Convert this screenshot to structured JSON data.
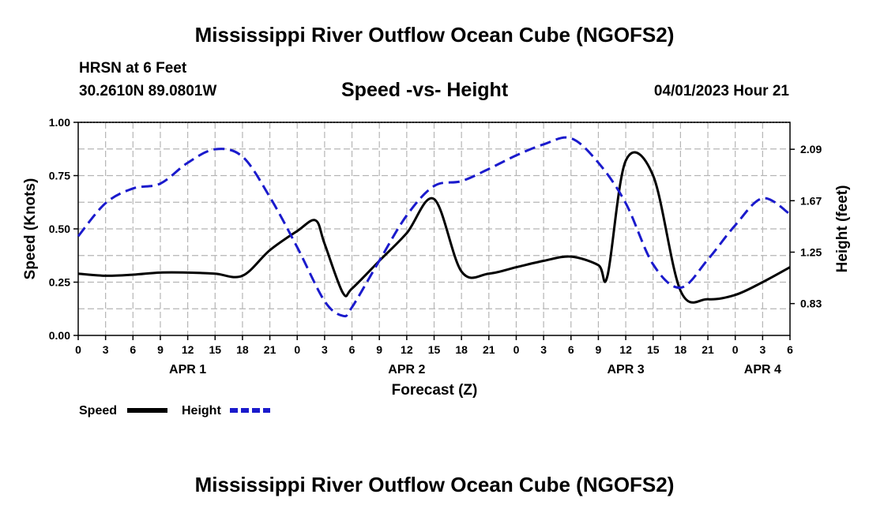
{
  "header": {
    "title": "Mississippi River Outflow Ocean Cube (NGOFS2)",
    "station": "HRSN at 6 Feet",
    "coords": "30.2610N  89.0801W",
    "datetime": "04/01/2023 Hour 21"
  },
  "footer": {
    "title": "Mississippi River Outflow Ocean Cube (NGOFS2)"
  },
  "chart_data": {
    "type": "line",
    "title": "Speed -vs- Height",
    "xlabel": "Forecast (Z)",
    "ylabel": "Speed (Knots)",
    "y2label": "Height (feet)",
    "xlim": [
      0,
      78
    ],
    "ylim": [
      0,
      1
    ],
    "y2lim": [
      0.57,
      2.31
    ],
    "x_tick_values": [
      0,
      3,
      6,
      9,
      12,
      15,
      18,
      21,
      24,
      27,
      30,
      33,
      36,
      39,
      42,
      45,
      48,
      51,
      54,
      57,
      60,
      63,
      66,
      69,
      72,
      75,
      78
    ],
    "x_tick_labels": [
      "0",
      "3",
      "6",
      "9",
      "12",
      "15",
      "18",
      "21",
      "0",
      "3",
      "6",
      "9",
      "12",
      "15",
      "18",
      "21",
      "0",
      "3",
      "6",
      "9",
      "12",
      "15",
      "18",
      "21",
      "0",
      "3",
      "6"
    ],
    "day_labels": [
      {
        "label": "APR 1",
        "x": 12
      },
      {
        "label": "APR 2",
        "x": 36
      },
      {
        "label": "APR 3",
        "x": 60
      },
      {
        "label": "APR 4",
        "x": 75
      }
    ],
    "y_ticks": [
      "0.00",
      "0.25",
      "0.50",
      "0.75",
      "1.00"
    ],
    "y_tick_values": [
      0,
      0.25,
      0.5,
      0.75,
      1.0
    ],
    "y2_ticks": [
      "0.83",
      "1.25",
      "1.67",
      "2.09"
    ],
    "y2_tick_values": [
      0.83,
      1.25,
      1.67,
      2.09
    ],
    "grid": true,
    "legend": [
      {
        "name": "Speed",
        "color": "#000000",
        "style": "solid"
      },
      {
        "name": "Height",
        "color": "#1a1acc",
        "style": "dashed"
      }
    ],
    "series": [
      {
        "name": "Speed",
        "axis": "left",
        "color": "#000000",
        "x": [
          0,
          3,
          6,
          9,
          12,
          15,
          18,
          21,
          24,
          26,
          27,
          29,
          30,
          33,
          36,
          39,
          42,
          45,
          48,
          51,
          54,
          57,
          58,
          60,
          63,
          66,
          69,
          72,
          75,
          78
        ],
        "y": [
          0.29,
          0.28,
          0.285,
          0.295,
          0.295,
          0.29,
          0.28,
          0.4,
          0.49,
          0.54,
          0.43,
          0.2,
          0.22,
          0.35,
          0.48,
          0.64,
          0.3,
          0.29,
          0.32,
          0.35,
          0.37,
          0.33,
          0.28,
          0.82,
          0.75,
          0.21,
          0.17,
          0.19,
          0.25,
          0.32
        ]
      },
      {
        "name": "Height",
        "axis": "right",
        "color": "#1a1acc",
        "x": [
          0,
          3,
          6,
          9,
          12,
          15,
          18,
          21,
          24,
          27,
          29,
          30,
          33,
          36,
          39,
          42,
          45,
          48,
          51,
          54,
          57,
          60,
          63,
          66,
          69,
          72,
          75,
          78
        ],
        "y": [
          1.38,
          1.65,
          1.77,
          1.81,
          1.98,
          2.09,
          2.03,
          1.7,
          1.29,
          0.85,
          0.73,
          0.8,
          1.18,
          1.55,
          1.79,
          1.83,
          1.93,
          2.04,
          2.13,
          2.18,
          1.98,
          1.65,
          1.15,
          0.96,
          1.19,
          1.47,
          1.69,
          1.56
        ]
      }
    ]
  }
}
